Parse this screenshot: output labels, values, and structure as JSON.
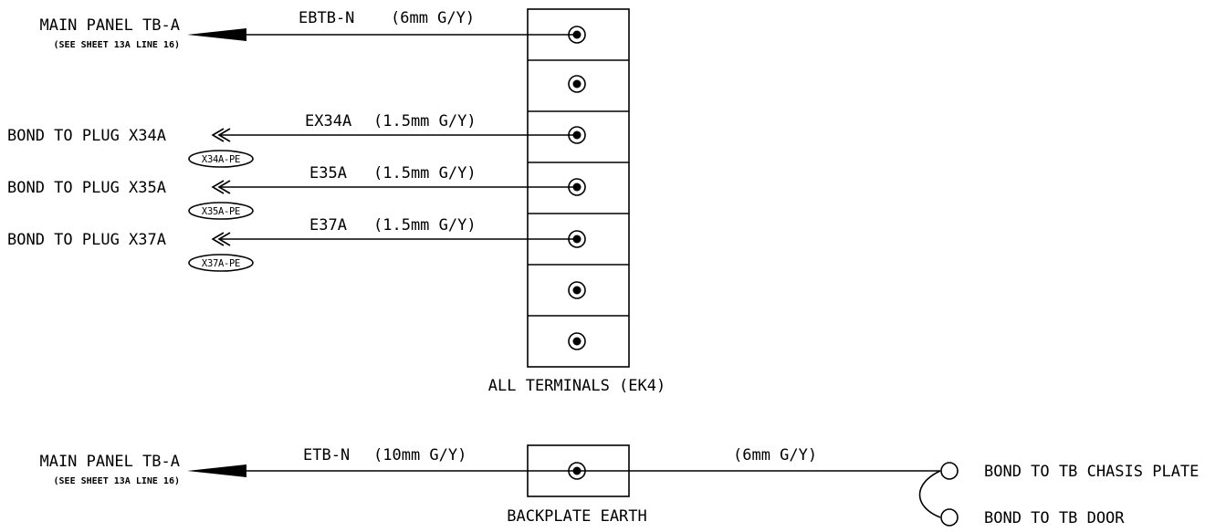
{
  "top": {
    "main_panel": {
      "title": "MAIN PANEL TB-A",
      "ref": "(SEE SHEET 13A LINE 16)"
    },
    "terminal_block_label": "ALL TERMINALS (EK4)",
    "wires": [
      {
        "id": "EBTB-N",
        "spec": "(6mm G/Y)"
      },
      {
        "id": "EX34A",
        "spec": "(1.5mm G/Y)",
        "dest": "BOND TO PLUG X34A",
        "tag": "X34A-PE"
      },
      {
        "id": "E35A",
        "spec": "(1.5mm G/Y)",
        "dest": "BOND TO PLUG X35A",
        "tag": "X35A-PE"
      },
      {
        "id": "E37A",
        "spec": "(1.5mm G/Y)",
        "dest": "BOND TO PLUG X37A",
        "tag": "X37A-PE"
      }
    ]
  },
  "bottom": {
    "main_panel": {
      "title": "MAIN PANEL TB-A",
      "ref": "(SEE SHEET 13A LINE 16)"
    },
    "wire_left": {
      "id": "ETB-N",
      "spec": "(10mm G/Y)"
    },
    "backplate_label": "BACKPLATE EARTH",
    "wire_right": {
      "spec": "(6mm G/Y)"
    },
    "bond_chassis": "BOND TO TB CHASIS PLATE",
    "bond_door": "BOND TO TB DOOR"
  }
}
